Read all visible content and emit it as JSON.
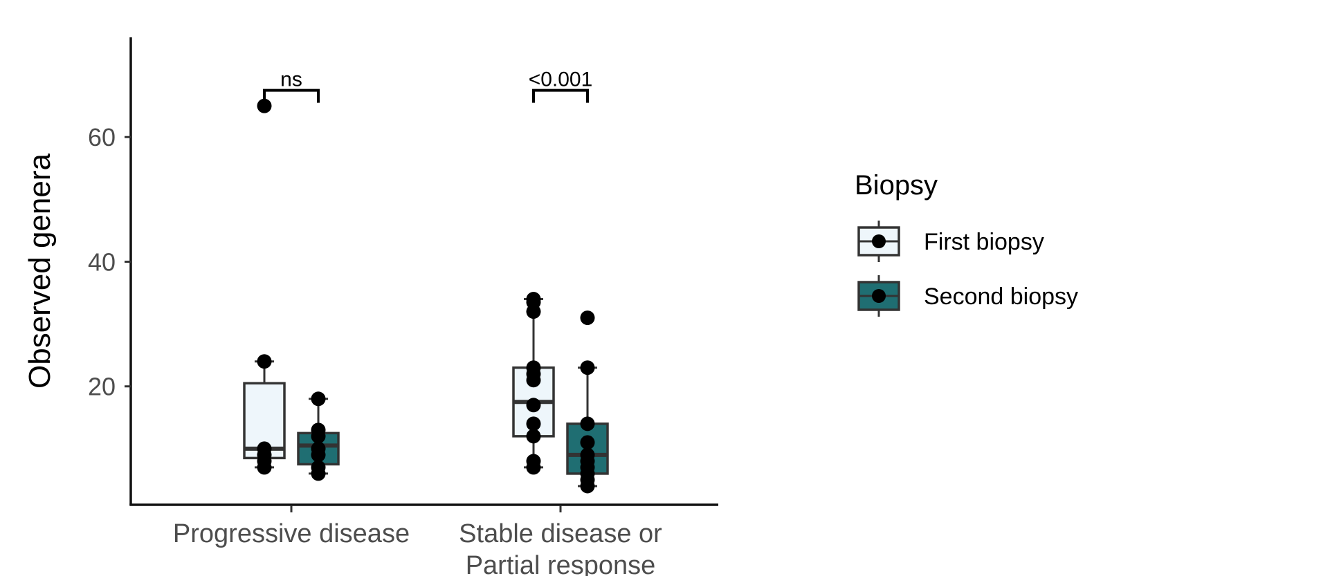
{
  "chart_data": {
    "type": "box",
    "title": "",
    "xlabel": "",
    "ylabel": "Observed genera",
    "ylim": [
      1,
      76
    ],
    "y_ticks": [
      20,
      40,
      60
    ],
    "grid": false,
    "legend": {
      "title": "Biopsy",
      "position": "right",
      "entries": [
        "First biopsy",
        "Second biopsy"
      ]
    },
    "categories": [
      {
        "label_lines": [
          "Progressive disease"
        ]
      },
      {
        "label_lines": [
          "Stable disease or",
          "Partial response"
        ]
      }
    ],
    "series": [
      {
        "name": "First biopsy",
        "color": "#eef6fb",
        "boxes": [
          {
            "q1": 8.5,
            "median": 10,
            "q3": 20.5,
            "whisker_low": 7,
            "whisker_high": 24,
            "points": [
              65,
              24,
              10,
              9,
              8,
              7
            ]
          },
          {
            "q1": 12,
            "median": 17.5,
            "q3": 23,
            "whisker_low": 7,
            "whisker_high": 34,
            "points": [
              34,
              33.5,
              32,
              23,
              22,
              21,
              17,
              14,
              12,
              8,
              7
            ]
          }
        ]
      },
      {
        "name": "Second biopsy",
        "color": "#1f6e72",
        "boxes": [
          {
            "q1": 7.5,
            "median": 10.5,
            "q3": 12.5,
            "whisker_low": 6,
            "whisker_high": 18,
            "points": [
              18,
              13,
              12,
              10,
              9,
              7,
              6
            ]
          },
          {
            "q1": 6,
            "median": 9,
            "q3": 14,
            "whisker_low": 4,
            "whisker_high": 23,
            "points": [
              31,
              23,
              14,
              11,
              9,
              8,
              7,
              6,
              5,
              4
            ]
          }
        ]
      }
    ],
    "annotations": [
      {
        "category": 0,
        "label": "ns",
        "y": 67.5
      },
      {
        "category": 1,
        "label": "<0.001",
        "y": 67.5
      }
    ]
  }
}
